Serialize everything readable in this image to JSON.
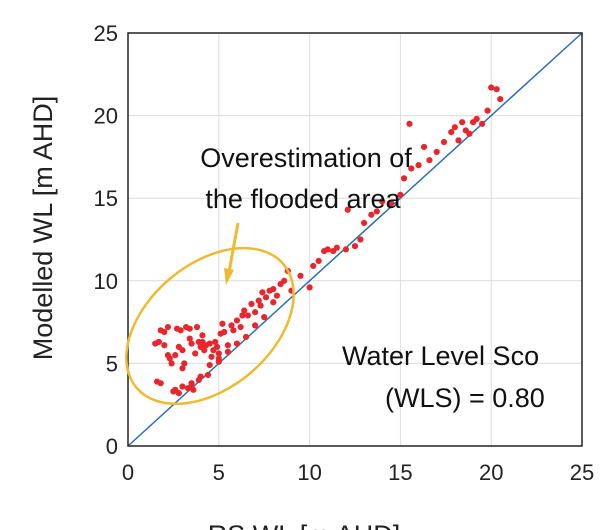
{
  "chart_data": {
    "type": "scatter",
    "xlabel": "RS WL  [m AHD]",
    "ylabel": "Modelled WL [m AHD]",
    "xlim": [
      0,
      25
    ],
    "ylim": [
      0,
      25
    ],
    "x_ticks": [
      "0",
      "5",
      "10",
      "15",
      "20",
      "25"
    ],
    "y_ticks": [
      "0",
      "5",
      "10",
      "15",
      "20",
      "25"
    ],
    "grid": true,
    "reference_line": "1:1",
    "annotations": {
      "overestimation_line1": "Overestimation of",
      "overestimation_line2": "the flooded area",
      "wls_line1": "Water Level Sco",
      "wls_line2": "(WLS) = 0.80"
    },
    "colors": {
      "points": "#e8262c",
      "reference_line": "#2a6fb5",
      "ellipse": "#f0b92e",
      "arrow": "#f0b92e",
      "grid": "#dcdcdc"
    },
    "points": [
      [
        1.6,
        3.9
      ],
      [
        1.8,
        3.8
      ],
      [
        1.5,
        6.2
      ],
      [
        1.7,
        6.3
      ],
      [
        2.0,
        6.1
      ],
      [
        1.8,
        7.0
      ],
      [
        2.0,
        6.9
      ],
      [
        2.2,
        7.2
      ],
      [
        2.2,
        5.5
      ],
      [
        2.3,
        5.3
      ],
      [
        2.4,
        5.0
      ],
      [
        2.5,
        3.3
      ],
      [
        2.6,
        3.4
      ],
      [
        2.8,
        3.2
      ],
      [
        2.6,
        5.5
      ],
      [
        2.7,
        7.1
      ],
      [
        2.9,
        7.0
      ],
      [
        2.8,
        6.0
      ],
      [
        3.0,
        5.8
      ],
      [
        3.0,
        4.7
      ],
      [
        3.1,
        5.0
      ],
      [
        3.2,
        7.2
      ],
      [
        3.4,
        7.1
      ],
      [
        3.3,
        3.5
      ],
      [
        3.5,
        3.6
      ],
      [
        3.6,
        3.4
      ],
      [
        3.4,
        6.5
      ],
      [
        3.5,
        6.2
      ],
      [
        3.7,
        5.6
      ],
      [
        3.8,
        7.2
      ],
      [
        3.9,
        6.3
      ],
      [
        3.9,
        4.0
      ],
      [
        4.0,
        6.0
      ],
      [
        4.1,
        6.3
      ],
      [
        4.1,
        6.7
      ],
      [
        4.2,
        5.8
      ],
      [
        4.3,
        6.1
      ],
      [
        4.4,
        4.3
      ],
      [
        4.5,
        6.2
      ],
      [
        4.6,
        5.4
      ],
      [
        4.7,
        5.8
      ],
      [
        4.8,
        6.3
      ],
      [
        4.9,
        6.0
      ],
      [
        5.0,
        5.6
      ],
      [
        5.1,
        6.8
      ],
      [
        5.2,
        7.4
      ],
      [
        5.3,
        6.9
      ],
      [
        5.0,
        5.1
      ],
      [
        5.5,
        6.1
      ],
      [
        5.8,
        7.0
      ],
      [
        5.7,
        7.3
      ],
      [
        6.0,
        7.6
      ],
      [
        6.2,
        7.2
      ],
      [
        6.3,
        7.9
      ],
      [
        6.4,
        8.2
      ],
      [
        6.6,
        7.9
      ],
      [
        6.8,
        8.6
      ],
      [
        7.0,
        8.1
      ],
      [
        7.2,
        8.8
      ],
      [
        7.3,
        8.5
      ],
      [
        7.4,
        9.3
      ],
      [
        7.6,
        9.0
      ],
      [
        7.8,
        9.4
      ],
      [
        8.0,
        9.5
      ],
      [
        8.0,
        8.7
      ],
      [
        8.2,
        9.1
      ],
      [
        8.4,
        9.8
      ],
      [
        8.6,
        10.0
      ],
      [
        8.8,
        10.6
      ],
      [
        9.0,
        9.4
      ],
      [
        3.0,
        3.6
      ],
      [
        3.5,
        3.8
      ],
      [
        4.0,
        4.2
      ],
      [
        4.5,
        4.9
      ],
      [
        5.0,
        5.3
      ],
      [
        5.5,
        5.7
      ],
      [
        6.0,
        6.2
      ],
      [
        6.5,
        6.6
      ],
      [
        7.0,
        7.3
      ],
      [
        7.5,
        7.8
      ],
      [
        9.5,
        10.3
      ],
      [
        10.0,
        9.6
      ],
      [
        10.2,
        10.9
      ],
      [
        10.5,
        11.2
      ],
      [
        10.8,
        11.8
      ],
      [
        11.0,
        11.9
      ],
      [
        11.3,
        11.8
      ],
      [
        11.5,
        12.0
      ],
      [
        12.0,
        11.9
      ],
      [
        12.1,
        14.3
      ],
      [
        12.5,
        12.1
      ],
      [
        12.8,
        12.5
      ],
      [
        13.0,
        13.5
      ],
      [
        13.4,
        14.0
      ],
      [
        13.7,
        14.2
      ],
      [
        14.0,
        14.8
      ],
      [
        14.5,
        14.7
      ],
      [
        15.0,
        15.2
      ],
      [
        15.2,
        16.2
      ],
      [
        15.5,
        19.5
      ],
      [
        15.6,
        16.8
      ],
      [
        16.0,
        17.0
      ],
      [
        16.3,
        18.1
      ],
      [
        16.6,
        17.3
      ],
      [
        17.0,
        17.8
      ],
      [
        17.4,
        18.4
      ],
      [
        17.8,
        19.0
      ],
      [
        18.0,
        19.3
      ],
      [
        18.2,
        18.5
      ],
      [
        18.4,
        19.6
      ],
      [
        18.6,
        19.1
      ],
      [
        18.8,
        18.9
      ],
      [
        19.0,
        19.6
      ],
      [
        19.2,
        19.8
      ],
      [
        19.5,
        19.5
      ],
      [
        19.8,
        20.3
      ],
      [
        20.0,
        21.7
      ],
      [
        20.3,
        21.6
      ],
      [
        20.5,
        21.0
      ]
    ]
  }
}
